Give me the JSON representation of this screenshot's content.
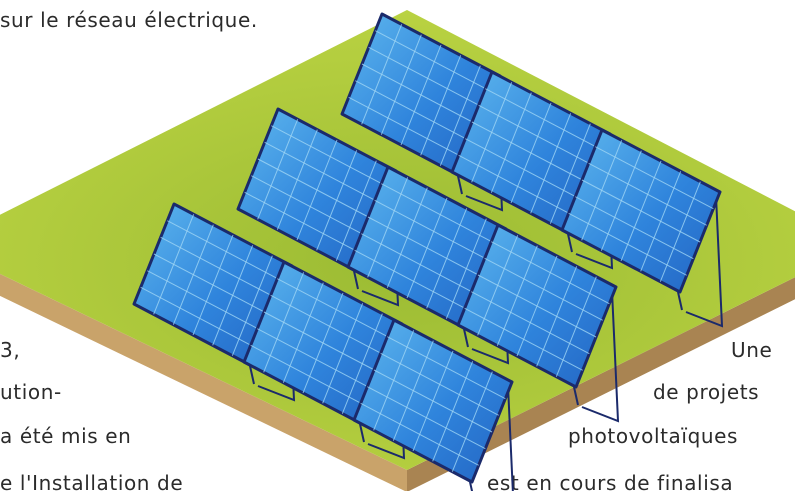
{
  "text_fragments": {
    "top_line": "sur le réseau électrique.",
    "left_1": "3,",
    "left_2": "ution-",
    "left_3": "a été mis en",
    "left_4": "e l'Installation de",
    "right_1": "Une",
    "right_2": "de projets",
    "right_3": "photovoltaïques",
    "right_4": "est en cours de finalisa"
  },
  "illustration": {
    "subject": "solar-farm-isometric",
    "panel_rows": 3,
    "panels_per_row": 3,
    "colors": {
      "grass": "#b7cf3e",
      "grass_dark": "#8fb02f",
      "soil_front": "#c9a36a",
      "soil_side": "#a98452",
      "panel_frame": "#1b2a6b",
      "panel_fill": "#2f7fd8",
      "panel_light": "#6ec3ef",
      "cell_line": "#9fd6f5",
      "stand": "#1b2a6b"
    }
  }
}
